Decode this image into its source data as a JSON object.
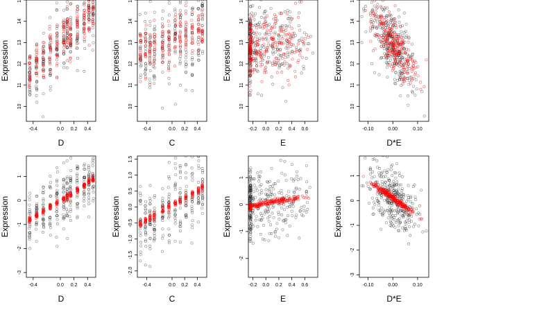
{
  "figure": {
    "colors": {
      "observed": "#000000",
      "fitted": "#ff0000",
      "frame": "#000000",
      "background": "#ffffff"
    },
    "point_style": "open circles, semi-transparent"
  },
  "chart_data": [
    {
      "type": "scatter",
      "panel": "top-1",
      "xlabel": "D",
      "ylabel": "Expression",
      "xlim": [
        -0.5,
        0.52
      ],
      "ylim": [
        9.3,
        15.0
      ],
      "xticks": [
        -0.4,
        0.0,
        0.2,
        0.4
      ],
      "xtick_labels": [
        "-0.4",
        "0.0",
        "0.2",
        "0.4"
      ],
      "yticks": [
        10,
        11,
        12,
        13,
        14,
        15
      ],
      "ytick_labels": [
        "10",
        "11",
        "12",
        "13",
        "14",
        "15"
      ],
      "x_levels": [
        -0.45,
        -0.35,
        -0.25,
        -0.15,
        -0.05,
        0.05,
        0.1,
        0.15,
        0.25,
        0.35,
        0.42,
        0.48
      ],
      "series": [
        {
          "color": "#000000",
          "trend": {
            "a": 13.0,
            "b": 3.4,
            "c": 0
          },
          "spread": 0.75,
          "n_per_level": 24
        },
        {
          "color": "#ff0000",
          "trend": {
            "a": 13.0,
            "b": 3.4,
            "c": 0
          },
          "spread": 0.55,
          "n_per_level": 16
        }
      ]
    },
    {
      "type": "scatter",
      "panel": "top-2",
      "xlabel": "C",
      "ylabel": "Expression",
      "xlim": [
        -0.55,
        0.55
      ],
      "ylim": [
        9.3,
        15.0
      ],
      "xticks": [
        -0.4,
        0.0,
        0.2,
        0.4
      ],
      "xtick_labels": [
        "-0.4",
        "0.0",
        "0.2",
        "0.4"
      ],
      "yticks": [
        10,
        11,
        12,
        13,
        14,
        15
      ],
      "ytick_labels": [
        "10",
        "11",
        "12",
        "13",
        "14",
        "15"
      ],
      "x_levels": [
        -0.5,
        -0.42,
        -0.35,
        -0.28,
        -0.15,
        -0.05,
        0.05,
        0.13,
        0.22,
        0.32,
        0.42,
        0.48
      ],
      "series": [
        {
          "color": "#000000",
          "trend": {
            "a": 13.1,
            "b": 1.2,
            "c": 0
          },
          "spread": 1.05,
          "n_per_level": 22
        },
        {
          "color": "#ff0000",
          "trend": {
            "a": 13.1,
            "b": 1.2,
            "c": 0
          },
          "spread": 0.6,
          "n_per_level": 14
        }
      ]
    },
    {
      "type": "scatter",
      "panel": "top-3",
      "xlabel": "E",
      "ylabel": "Expression",
      "xlim": [
        -0.27,
        0.8
      ],
      "ylim": [
        9.3,
        15.0
      ],
      "xticks": [
        -0.2,
        0.0,
        0.2,
        0.4,
        0.6
      ],
      "xtick_labels": [
        "-0.2",
        "0.0",
        "0.2",
        "0.4",
        "0.6"
      ],
      "yticks": [
        10,
        11,
        12,
        13,
        14,
        15
      ],
      "ytick_labels": [
        "10",
        "11",
        "12",
        "13",
        "14",
        "15"
      ],
      "x_range": [
        -0.25,
        0.75
      ],
      "series": [
        {
          "color": "#000000",
          "trend": {
            "a": 12.9,
            "b": 0.4,
            "c": 0
          },
          "spread": 0.95,
          "n_points": 300
        },
        {
          "color": "#ff0000",
          "trend": {
            "a": 12.8,
            "b": 0.2,
            "c": 0
          },
          "spread": 0.7,
          "n_points": 220
        }
      ]
    },
    {
      "type": "scatter",
      "panel": "top-4",
      "xlabel": "D*E",
      "ylabel": "Expression",
      "xlim": [
        -0.135,
        0.145
      ],
      "ylim": [
        9.3,
        15.0
      ],
      "xticks": [
        -0.1,
        0.0,
        0.1
      ],
      "xtick_labels": [
        "-0.10",
        "0.00",
        "0.10"
      ],
      "yticks": [
        10,
        11,
        12,
        13,
        14,
        15
      ],
      "ytick_labels": [
        "10",
        "11",
        "12",
        "13",
        "14",
        "15"
      ],
      "x_range": [
        -0.125,
        0.135
      ],
      "series": [
        {
          "color": "#000000",
          "trend": {
            "a": 12.9,
            "b": -15.0,
            "c": 0
          },
          "spread": 0.8,
          "n_points": 320
        },
        {
          "color": "#ff0000",
          "trend": {
            "a": 12.9,
            "b": -15.0,
            "c": 0
          },
          "spread": 0.55,
          "n_points": 230
        }
      ]
    },
    {
      "type": "scatter",
      "panel": "bottom-1",
      "xlabel": "D",
      "ylabel": "Expression",
      "xlim": [
        -0.5,
        0.52
      ],
      "ylim": [
        -3.2,
        1.85
      ],
      "xticks": [
        -0.4,
        0.0,
        0.2,
        0.4
      ],
      "xtick_labels": [
        "-0.4",
        "0.0",
        "0.2",
        "0.4"
      ],
      "yticks": [
        -3,
        -2,
        -1,
        0,
        1
      ],
      "ytick_labels": [
        "-3",
        "-2",
        "-1",
        "0",
        "1"
      ],
      "x_levels": [
        -0.45,
        -0.35,
        -0.25,
        -0.15,
        -0.05,
        0.05,
        0.1,
        0.15,
        0.25,
        0.35,
        0.42,
        0.48
      ],
      "series": [
        {
          "color": "#000000",
          "trend": {
            "a": 0.0,
            "b": 1.8,
            "c": 0
          },
          "spread": 0.6,
          "n_per_level": 24
        },
        {
          "color": "#ff0000",
          "trend": {
            "a": 0.0,
            "b": 1.8,
            "c": 0
          },
          "spread": 0.06,
          "n_per_level": 16
        }
      ]
    },
    {
      "type": "scatter",
      "panel": "bottom-2",
      "xlabel": "C",
      "ylabel": "Expression",
      "xlim": [
        -0.55,
        0.55
      ],
      "ylim": [
        -2.2,
        1.6
      ],
      "xticks": [
        -0.4,
        0.0,
        0.2,
        0.4
      ],
      "xtick_labels": [
        "-0.4",
        "0.0",
        "0.2",
        "0.4"
      ],
      "yticks": [
        -2.0,
        -1.5,
        -1.0,
        -0.5,
        0.0,
        0.5,
        1.0,
        1.5
      ],
      "ytick_labels": [
        "-2.0",
        "-1.5",
        "-1.0",
        "-0.5",
        "0.0",
        "0.5",
        "1.0",
        "1.5"
      ],
      "x_levels": [
        -0.5,
        -0.42,
        -0.35,
        -0.28,
        -0.15,
        -0.05,
        0.05,
        0.13,
        0.22,
        0.32,
        0.42,
        0.48
      ],
      "series": [
        {
          "color": "#000000",
          "trend": {
            "a": 0.05,
            "b": 1.15,
            "c": 0
          },
          "spread": 0.55,
          "n_per_level": 22
        },
        {
          "color": "#ff0000",
          "trend": {
            "a": 0.05,
            "b": 1.15,
            "c": 0
          },
          "spread": 0.06,
          "n_per_level": 14
        }
      ]
    },
    {
      "type": "scatter",
      "panel": "bottom-3",
      "xlabel": "E",
      "ylabel": "Expression",
      "xlim": [
        -0.27,
        0.8
      ],
      "ylim": [
        -2.7,
        1.8
      ],
      "xticks": [
        -0.2,
        0.0,
        0.2,
        0.4,
        0.6
      ],
      "xtick_labels": [
        "-0.2",
        "0.0",
        "0.2",
        "0.4",
        "0.6"
      ],
      "yticks": [
        -2,
        -1,
        0,
        1
      ],
      "ytick_labels": [
        "-2",
        "-1",
        "0",
        "1"
      ],
      "x_range": [
        -0.25,
        0.75
      ],
      "series": [
        {
          "color": "#000000",
          "trend": {
            "a": 0.0,
            "b": 0.4,
            "c": 0
          },
          "spread": 0.6,
          "n_points": 300
        },
        {
          "color": "#ff0000",
          "trend": {
            "a": 0.05,
            "b": 0.55,
            "c": -0.3
          },
          "spread": 0.05,
          "n_points": 220
        }
      ]
    },
    {
      "type": "scatter",
      "panel": "bottom-4",
      "xlabel": "D*E",
      "ylabel": "Expression",
      "xlim": [
        -0.135,
        0.145
      ],
      "ylim": [
        -3.1,
        1.8
      ],
      "xticks": [
        -0.1,
        0.0,
        0.1
      ],
      "xtick_labels": [
        "-0.10",
        "0.00",
        "0.10"
      ],
      "yticks": [
        -3,
        -2,
        -1,
        0,
        1
      ],
      "ytick_labels": [
        "-3",
        "-2",
        "-1",
        "0",
        "1"
      ],
      "x_range": [
        -0.125,
        0.135
      ],
      "series": [
        {
          "color": "#000000",
          "trend": {
            "a": 0.1,
            "b": -7.0,
            "c": 0
          },
          "spread": 0.6,
          "n_points": 320
        },
        {
          "color": "#ff0000",
          "trend": {
            "a": 0.1,
            "b": -7.0,
            "c": 0
          },
          "spread": 0.06,
          "n_points": 230
        }
      ]
    }
  ]
}
